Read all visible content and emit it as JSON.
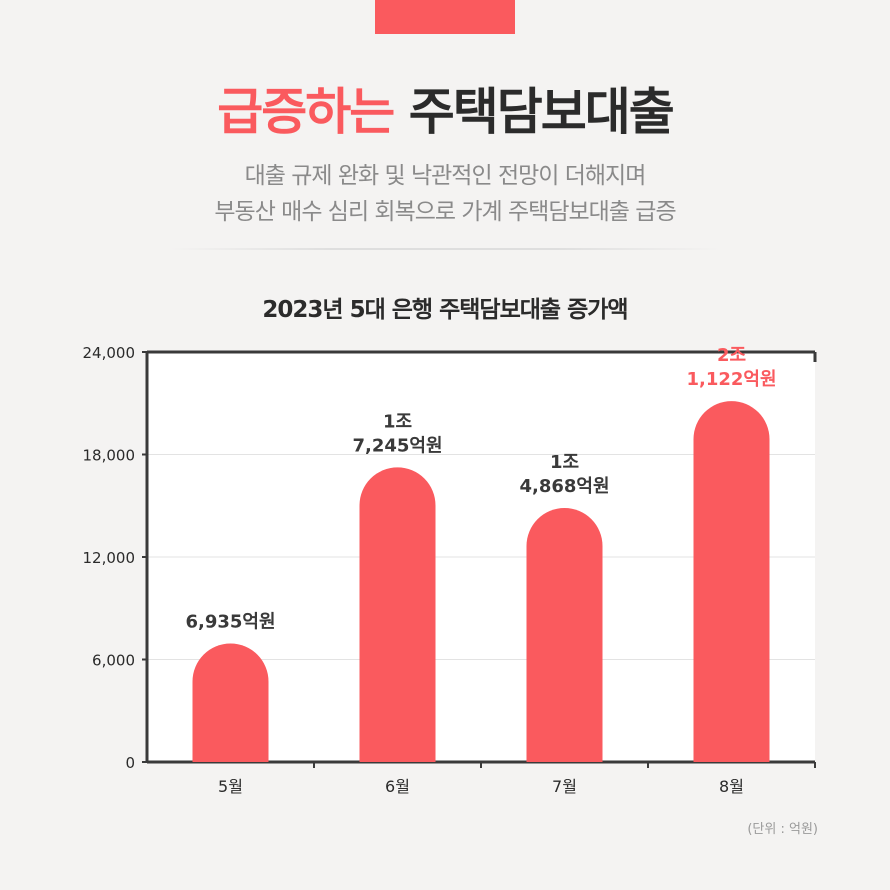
{
  "header": {
    "title_accent": "급증하는",
    "title_rest": "주택담보대출",
    "subtitle_line1": "대출 규제 완화 및 낙관적인 전망이 더해지며",
    "subtitle_line2": "부동산 매수 심리 회복으로 가계 주택담보대출 급증"
  },
  "colors": {
    "accent": "#fa5a5e",
    "bar": "#fa5a5e",
    "text": "#2b2b2b",
    "muted": "#8a8a8a"
  },
  "chart_data": {
    "type": "bar",
    "title": "2023년 5대 은행 주택담보대출 증가액",
    "categories": [
      "5월",
      "6월",
      "7월",
      "8월"
    ],
    "values": [
      6935,
      17245,
      14868,
      21122
    ],
    "data_labels": [
      [
        "6,935억원"
      ],
      [
        "1조",
        "7,245억원"
      ],
      [
        "1조",
        "4,868억원"
      ],
      [
        "2조",
        "1,122억원"
      ]
    ],
    "highlight_index": 3,
    "ylim": [
      0,
      24000
    ],
    "yticks": [
      0,
      6000,
      12000,
      18000,
      24000
    ],
    "ytick_labels": [
      "0",
      "6,000",
      "12,000",
      "18,000",
      "24,000"
    ],
    "grid": true,
    "unit_note": "(단위 : 억원)"
  }
}
